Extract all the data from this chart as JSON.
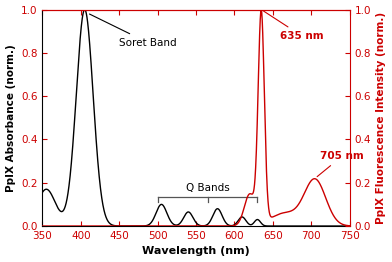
{
  "xlim": [
    350,
    750
  ],
  "ylim_left": [
    0.0,
    1.0
  ],
  "ylim_right": [
    0.0,
    1.0
  ],
  "xlabel": "Wavelength (nm)",
  "ylabel_left": "PpIX Absorbance (norm.)",
  "ylabel_right": "PpIX Fluorescence Intensity (norm.)",
  "xticks": [
    350,
    400,
    450,
    500,
    550,
    600,
    650,
    700,
    750
  ],
  "yticks": [
    0.0,
    0.2,
    0.4,
    0.6,
    0.8,
    1.0
  ],
  "line_color_abs": "#000000",
  "line_color_flu": "#cc0000",
  "top_spine_color": "#cc0000",
  "annotation_soret": "Soret Band",
  "annotation_qbands": "Q Bands",
  "annotation_635": "635 nm",
  "annotation_705": "705 nm",
  "figsize": [
    3.92,
    2.62
  ],
  "dpi": 100
}
